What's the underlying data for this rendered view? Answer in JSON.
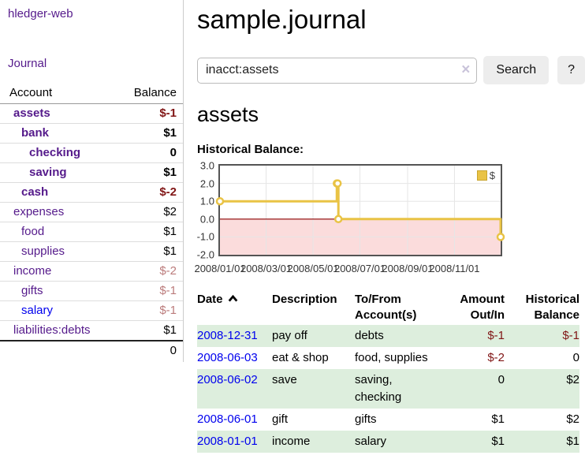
{
  "app": {
    "title": "hledger-web"
  },
  "colors": {
    "link_purple": "#551a8b",
    "link_blue": "#0000ee",
    "negative": "#801515",
    "negative_soft": "#bb7b7b",
    "row_stripe": "#ddeedd",
    "chart_line": "#e9c345",
    "chart_border": "#545454",
    "chart_negative_fill": "#fbdcdc",
    "chart_zero_line": "#8b0000",
    "button_bg": "#ededed"
  },
  "sidebar": {
    "nav_journal": "Journal",
    "table": {
      "account_header": "Account",
      "balance_header": "Balance",
      "rows": [
        {
          "account": "assets",
          "indent": 1,
          "bold": true,
          "balance": "$-1",
          "balance_style": "neg"
        },
        {
          "account": "bank",
          "indent": 2,
          "bold": true,
          "balance": "$1",
          "balance_style": "pos"
        },
        {
          "account": "checking",
          "indent": 3,
          "bold": true,
          "balance": "0",
          "balance_style": "pos"
        },
        {
          "account": "saving",
          "indent": 3,
          "bold": true,
          "balance": "$1",
          "balance_style": "pos"
        },
        {
          "account": "cash",
          "indent": 2,
          "bold": true,
          "balance": "$-2",
          "balance_style": "neg"
        },
        {
          "account": "expenses",
          "indent": 1,
          "bold": false,
          "balance": "$2",
          "balance_style": "pos"
        },
        {
          "account": "food",
          "indent": 2,
          "bold": false,
          "balance": "$1",
          "balance_style": "pos"
        },
        {
          "account": "supplies",
          "indent": 2,
          "bold": false,
          "balance": "$1",
          "balance_style": "pos"
        },
        {
          "account": "income",
          "indent": 1,
          "bold": false,
          "balance": "$-2",
          "balance_style": "neg-soft"
        },
        {
          "account": "gifts",
          "indent": 2,
          "bold": false,
          "balance": "$-1",
          "balance_style": "neg-soft"
        },
        {
          "account": "salary",
          "indent": 2,
          "bold": false,
          "link_color": "blue",
          "balance": "$-1",
          "balance_style": "neg-soft"
        },
        {
          "account": "liabilities:debts",
          "indent": 1,
          "bold": false,
          "balance": "$1",
          "balance_style": "pos"
        }
      ],
      "total": "0"
    }
  },
  "main": {
    "title": "sample.journal",
    "search": {
      "value": "inacct:assets",
      "clear_icon": "×",
      "button": "Search",
      "help_button": "?"
    },
    "account_heading": "assets",
    "chart_label": "Historical Balance:"
  },
  "chart_data": {
    "type": "line",
    "step": true,
    "title": "Historical Balance",
    "series": [
      {
        "name": "$",
        "color": "#e9c345",
        "points": [
          [
            "2008-01-01",
            1
          ],
          [
            "2008-06-01",
            2
          ],
          [
            "2008-06-02",
            2
          ],
          [
            "2008-06-03",
            0
          ],
          [
            "2008-12-31",
            -1
          ]
        ]
      }
    ],
    "xrange": [
      "2008-01-01",
      "2008-12-31"
    ],
    "ylim": [
      -2,
      3
    ],
    "yticks": [
      3,
      2,
      1,
      0,
      -1,
      -2
    ],
    "xticks": [
      "2008/01/01",
      "2008/03/01",
      "2008/05/01",
      "2008/07/01",
      "2008/09/01",
      "2008/11/01"
    ],
    "legend": "$",
    "legend_position": "top-right",
    "grid": true,
    "negative_region_color": "#fbdcdc",
    "zero_line_color": "#8b0000"
  },
  "register": {
    "headers": {
      "date": "Date",
      "description": "Description",
      "accounts": "To/From Account(s)",
      "amount": "Amount Out/In",
      "balance": "Historical Balance"
    },
    "sort": "ascending",
    "sort_icon": "caret-up-icon",
    "rows": [
      {
        "date": "2008-12-31",
        "description": "pay off",
        "accounts": "debts",
        "amount": "$-1",
        "amount_neg": true,
        "balance": "$-1",
        "balance_neg": true
      },
      {
        "date": "2008-06-03",
        "description": "eat & shop",
        "accounts": "food, supplies",
        "amount": "$-2",
        "amount_neg": true,
        "balance": "0",
        "balance_neg": false
      },
      {
        "date": "2008-06-02",
        "description": "save",
        "accounts": "saving,\nchecking",
        "amount": "0",
        "amount_neg": false,
        "balance": "$2",
        "balance_neg": false
      },
      {
        "date": "2008-06-01",
        "description": "gift",
        "accounts": "gifts",
        "amount": "$1",
        "amount_neg": false,
        "balance": "$2",
        "balance_neg": false
      },
      {
        "date": "2008-01-01",
        "description": "income",
        "accounts": "salary",
        "amount": "$1",
        "amount_neg": false,
        "balance": "$1",
        "balance_neg": false
      }
    ]
  }
}
